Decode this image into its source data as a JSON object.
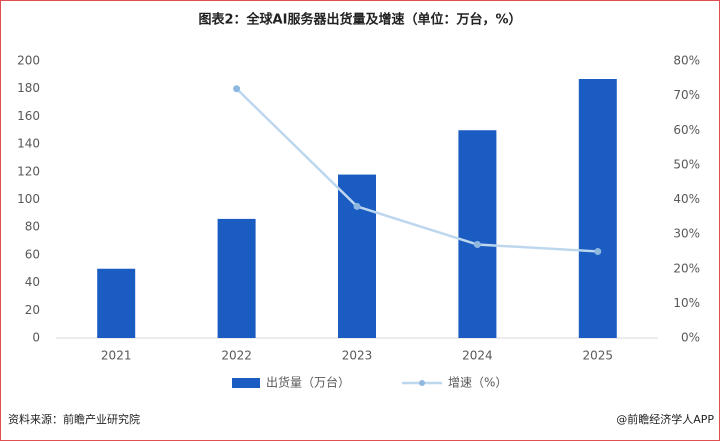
{
  "chart_data": {
    "type": "bar",
    "title": "图表2：全球AI服务器出货量及增速（单位：万台，%）",
    "categories": [
      "2021",
      "2022",
      "2023",
      "2024",
      "2025"
    ],
    "series": [
      {
        "name": "出货量（万台）",
        "color": "#1a5cc2",
        "values": [
          50,
          86,
          118,
          150,
          187
        ]
      },
      {
        "name": "增速（%）",
        "type": "line",
        "axis": "y2",
        "color": "#bdd7ee",
        "marker_color": "#8fb8e0",
        "values": [
          null,
          72,
          38,
          27,
          25
        ]
      }
    ],
    "ylim": [
      0,
      200
    ],
    "yticks": [
      0,
      20,
      40,
      60,
      80,
      100,
      120,
      140,
      160,
      180,
      200
    ],
    "y2lim": [
      0,
      80
    ],
    "y2ticks": [
      {
        "value": 0,
        "label": "0%"
      },
      {
        "value": 10,
        "label": "10%"
      },
      {
        "value": 20,
        "label": "20%"
      },
      {
        "value": 30,
        "label": "30%"
      },
      {
        "value": 40,
        "label": "40%"
      },
      {
        "value": 50,
        "label": "50%"
      },
      {
        "value": 60,
        "label": "60%"
      },
      {
        "value": 70,
        "label": "70%"
      },
      {
        "value": 80,
        "label": "80%"
      }
    ],
    "grid": false,
    "source": "资料来源：前瞻产业研究院",
    "credit": "@前瞻经济学人APP"
  }
}
